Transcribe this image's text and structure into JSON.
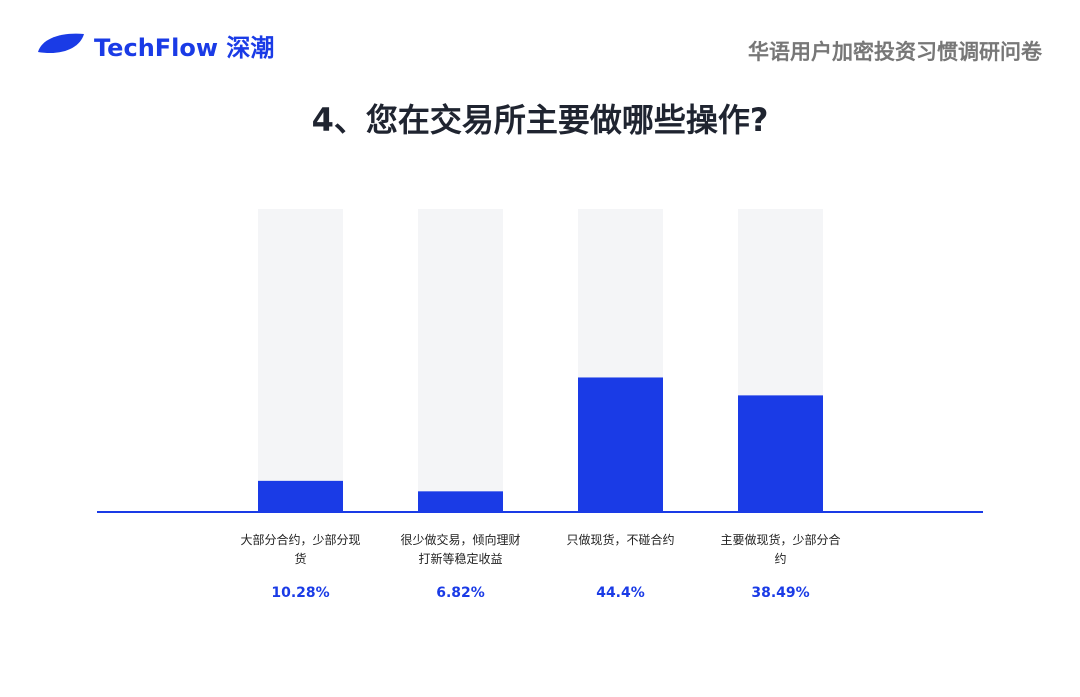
{
  "chart_data": {
    "type": "bar",
    "brand": "TechFlow 深潮",
    "subtitle": "华语用户加密投资习惯调研问卷",
    "title": "4、您在交易所主要做哪些操作?",
    "categories": [
      "大部分合约，少部分现货",
      "很少做交易，倾向理财打新等稳定收益",
      "只做现货，不碰合约",
      "主要做现货，少部分合约"
    ],
    "values": [
      10.28,
      6.82,
      44.4,
      38.49
    ],
    "value_labels": [
      "10.28%",
      "6.82%",
      "44.4%",
      "38.49%"
    ],
    "color": "#1a3be6",
    "track_color": "#f4f5f7",
    "ylim": [
      0,
      100
    ]
  }
}
